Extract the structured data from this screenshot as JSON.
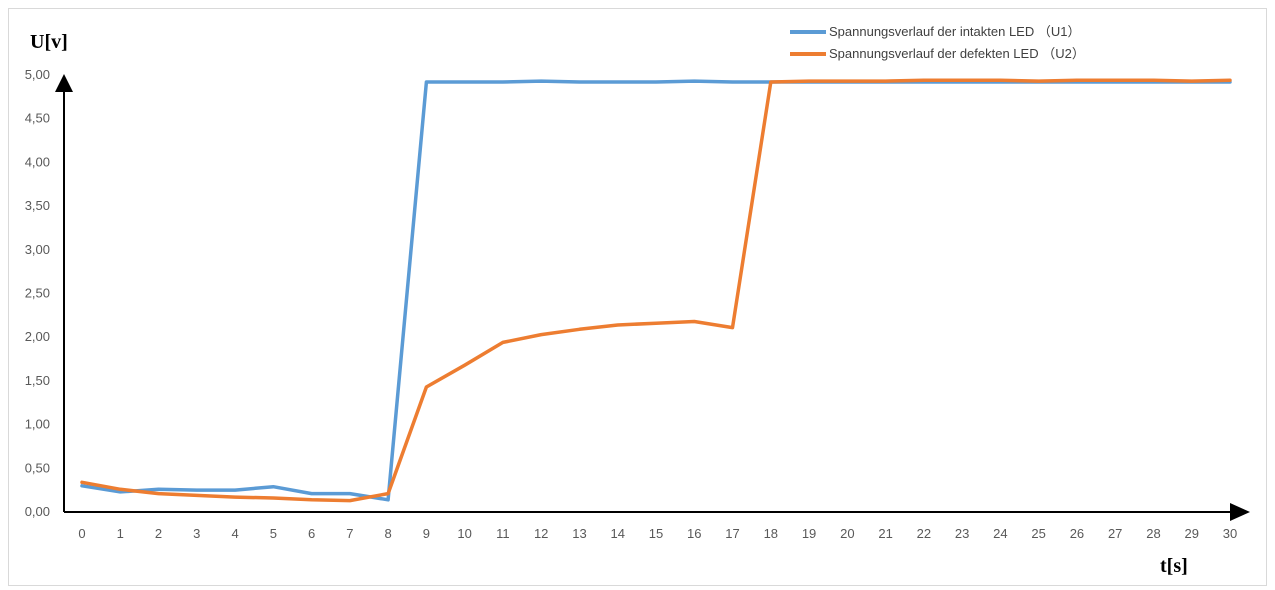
{
  "chart_data": {
    "type": "line",
    "title": "",
    "ylabel": "U[v]",
    "xlabel": "t[s]",
    "ylim": [
      0,
      5
    ],
    "grid": false,
    "legend_position": "top-right",
    "y_ticks": [
      "0,00",
      "0,50",
      "1,00",
      "1,50",
      "2,00",
      "2,50",
      "3,00",
      "3,50",
      "4,00",
      "4,50",
      "5,00"
    ],
    "categories": [
      "0",
      "1",
      "2",
      "3",
      "4",
      "5",
      "6",
      "7",
      "8",
      "9",
      "10",
      "11",
      "12",
      "13",
      "14",
      "15",
      "16",
      "17",
      "18",
      "19",
      "20",
      "21",
      "22",
      "23",
      "24",
      "25",
      "26",
      "27",
      "28",
      "29",
      "30"
    ],
    "series": [
      {
        "name": "Spannungsverlauf der intakten LED （U1）",
        "color": "#5b9bd5",
        "values": [
          0.3,
          0.23,
          0.26,
          0.25,
          0.25,
          0.29,
          0.21,
          0.21,
          0.14,
          4.92,
          4.92,
          4.92,
          4.93,
          4.92,
          4.92,
          4.92,
          4.93,
          4.92,
          4.92,
          4.92,
          4.92,
          4.92,
          4.92,
          4.92,
          4.92,
          4.92,
          4.92,
          4.92,
          4.92,
          4.92,
          4.92
        ]
      },
      {
        "name": "Spannungsverlauf der defekten LED （U2）",
        "color": "#ed7d31",
        "values": [
          0.34,
          0.26,
          0.21,
          0.19,
          0.17,
          0.16,
          0.14,
          0.13,
          0.21,
          1.43,
          1.68,
          1.94,
          2.03,
          2.09,
          2.14,
          2.16,
          2.18,
          2.11,
          4.92,
          4.93,
          4.93,
          4.93,
          4.94,
          4.94,
          4.94,
          4.93,
          4.94,
          4.94,
          4.94,
          4.93,
          4.94
        ]
      }
    ]
  }
}
